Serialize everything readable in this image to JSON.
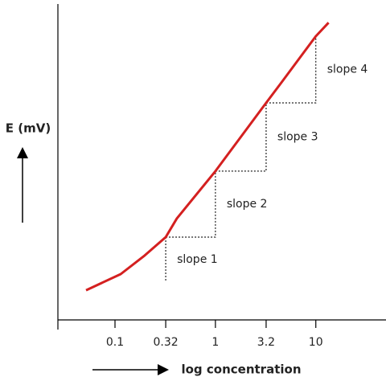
{
  "chart_data": {
    "type": "line",
    "xlabel": "log concentration",
    "ylabel": "E (mV)",
    "x": [
      0.0515,
      0.114,
      0.198,
      0.32,
      0.413,
      1,
      3.2,
      4.53,
      10,
      13.4
    ],
    "values": [
      9.4,
      14.5,
      20.4,
      26.2,
      32.1,
      47.1,
      68.7,
      75.1,
      89.8,
      94.1
    ],
    "color": "#d42020",
    "log_x": true,
    "xlim": [
      0.027,
      50
    ],
    "ylim": [
      0,
      100
    ],
    "xticks": [
      0.1,
      0.32,
      1,
      3.2,
      10
    ],
    "annotations": [
      "slope 1",
      "slope 2",
      "slope 3",
      "slope 4"
    ]
  }
}
